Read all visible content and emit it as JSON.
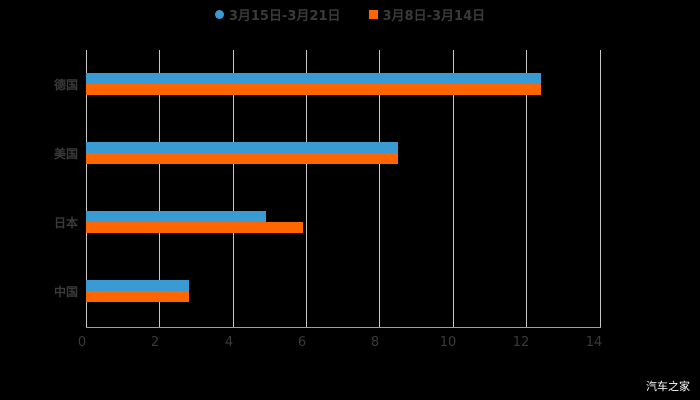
{
  "chart_data": {
    "type": "bar",
    "orientation": "horizontal",
    "title": "",
    "categories": [
      "德国",
      "美国",
      "日本",
      "中国"
    ],
    "series": [
      {
        "name": "3月15日-3月21日",
        "color": "#3a9ad4",
        "values": [
          12.4,
          8.5,
          4.9,
          2.8
        ]
      },
      {
        "name": "3月8日-3月14日",
        "color": "#ff6600",
        "values": [
          12.4,
          8.5,
          5.9,
          2.8
        ]
      }
    ],
    "xlabel": "",
    "ylabel": "",
    "xlim": [
      0,
      14
    ],
    "xticks": [
      "0",
      "2",
      "4",
      "6",
      "8",
      "10",
      "12",
      "14"
    ],
    "grid": true,
    "legend_position": "top"
  },
  "legend": {
    "items": [
      {
        "label": "3月15日-3月21日",
        "color": "#3a9ad4",
        "shape": "circle"
      },
      {
        "label": "3月8日-3月14日",
        "color": "#ff6600",
        "shape": "square"
      }
    ]
  },
  "watermark": "汽车之家"
}
